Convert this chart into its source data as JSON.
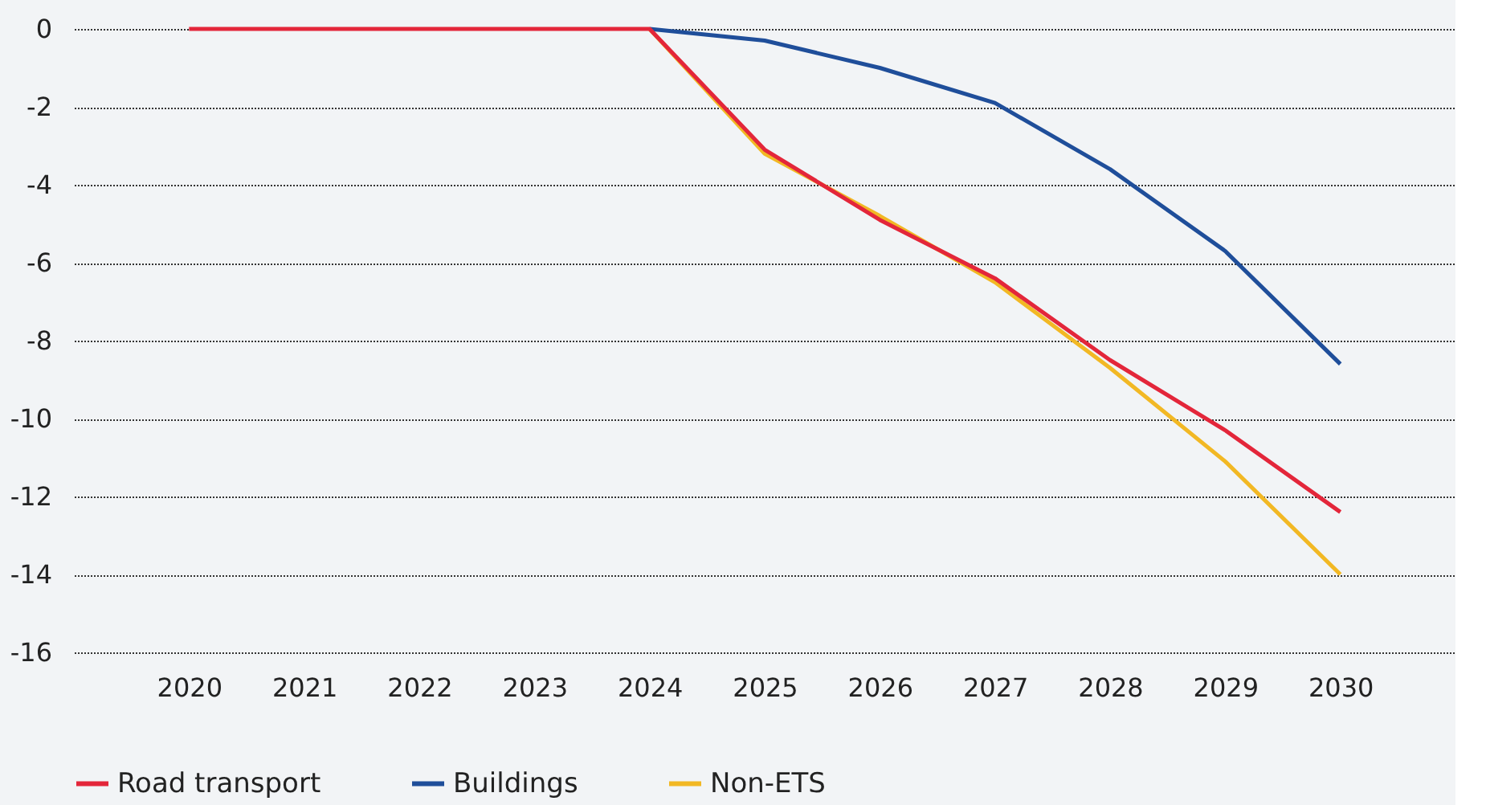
{
  "chart_data": {
    "type": "line",
    "categories": [
      "2020",
      "2021",
      "2022",
      "2023",
      "2024",
      "2025",
      "2026",
      "2027",
      "2028",
      "2029",
      "2030"
    ],
    "series": [
      {
        "name": "Road transport",
        "color": "#e3263a",
        "values": [
          0,
          0,
          0,
          0,
          0,
          -3.1,
          -4.9,
          -6.4,
          -8.5,
          -10.3,
          -12.4
        ]
      },
      {
        "name": "Buildings",
        "color": "#1f4e9a",
        "values": [
          null,
          null,
          null,
          null,
          0,
          -0.3,
          -1.0,
          -1.9,
          -3.6,
          -5.7,
          -8.6
        ]
      },
      {
        "name": "Non-ETS",
        "color": "#f2b824",
        "values": [
          null,
          null,
          null,
          null,
          0,
          -3.2,
          -4.8,
          -6.5,
          -8.7,
          -11.1,
          -14.0
        ]
      }
    ],
    "ylim": [
      -16,
      0
    ],
    "yticks": [
      0,
      -2,
      -4,
      -6,
      -8,
      -10,
      -12,
      -14,
      -16
    ],
    "grid": "y",
    "legend": "bottom",
    "marker": "none",
    "line_style": "solid"
  }
}
